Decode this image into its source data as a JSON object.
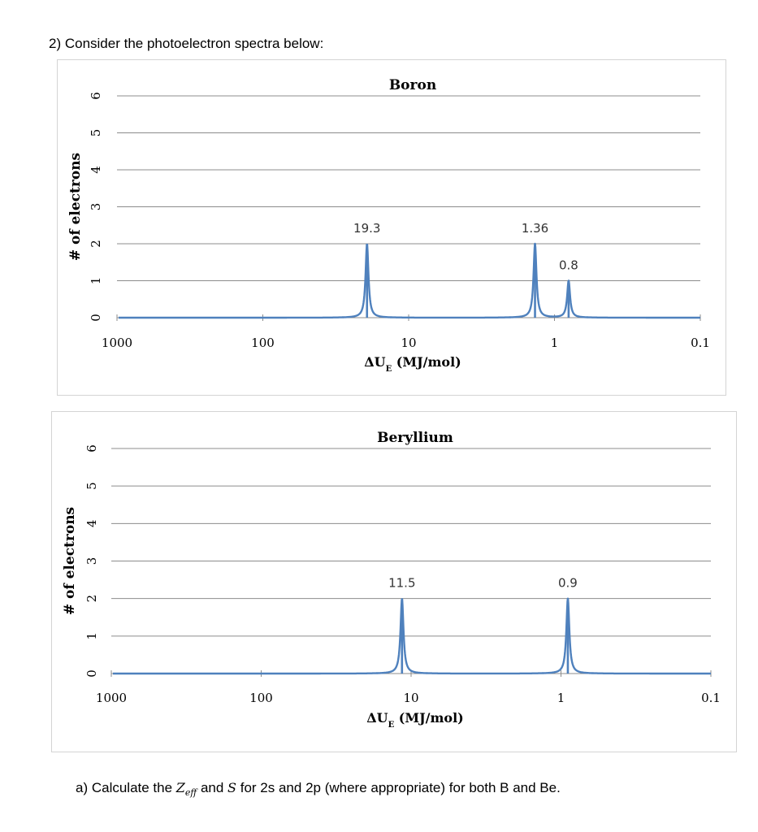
{
  "question": "2) Consider the photoelectron spectra below:",
  "sub_question": {
    "prefix": "a) Calculate the ",
    "zeff_main": "Z",
    "zeff_sub": "eff",
    "and_text": " and ",
    "s_symbol": "S",
    "suffix": " for 2s and 2p (where appropriate) for both B and Be."
  },
  "colors": {
    "series": "#4f81bd",
    "grid": "#8c8c8c"
  },
  "chart_data": [
    {
      "type": "line",
      "title": "Boron",
      "xlabel_main": "ΔU",
      "xlabel_sub": "E",
      "xlabel_unit": " (MJ/mol)",
      "ylabel": "# of electrons",
      "xscale": "log-reversed",
      "xlim": [
        1000,
        0.1
      ],
      "ylim": [
        0,
        6
      ],
      "xticks": [
        "1000",
        "100",
        "10",
        "1",
        "0.1"
      ],
      "xtick_values": [
        1000,
        100,
        10,
        1,
        0.1
      ],
      "yticks": [
        "0",
        "1",
        "2",
        "3",
        "4",
        "5",
        "6"
      ],
      "grid": true,
      "peaks": [
        {
          "x": 19.3,
          "y": 2,
          "label": "19.3"
        },
        {
          "x": 1.36,
          "y": 2,
          "label": "1.36"
        },
        {
          "x": 0.8,
          "y": 1,
          "label": "0.8"
        }
      ]
    },
    {
      "type": "line",
      "title": "Beryllium",
      "xlabel_main": "ΔU",
      "xlabel_sub": "E",
      "xlabel_unit": " (MJ/mol)",
      "ylabel": "# of electrons",
      "xscale": "log-reversed",
      "xlim": [
        1000,
        0.1
      ],
      "ylim": [
        0,
        6
      ],
      "xticks": [
        "1000",
        "100",
        "10",
        "1",
        "0.1"
      ],
      "xtick_values": [
        1000,
        100,
        10,
        1,
        0.1
      ],
      "yticks": [
        "0",
        "1",
        "2",
        "3",
        "4",
        "5",
        "6"
      ],
      "grid": true,
      "peaks": [
        {
          "x": 11.5,
          "y": 2,
          "label": "11.5"
        },
        {
          "x": 0.9,
          "y": 2,
          "label": "0.9"
        }
      ]
    }
  ]
}
